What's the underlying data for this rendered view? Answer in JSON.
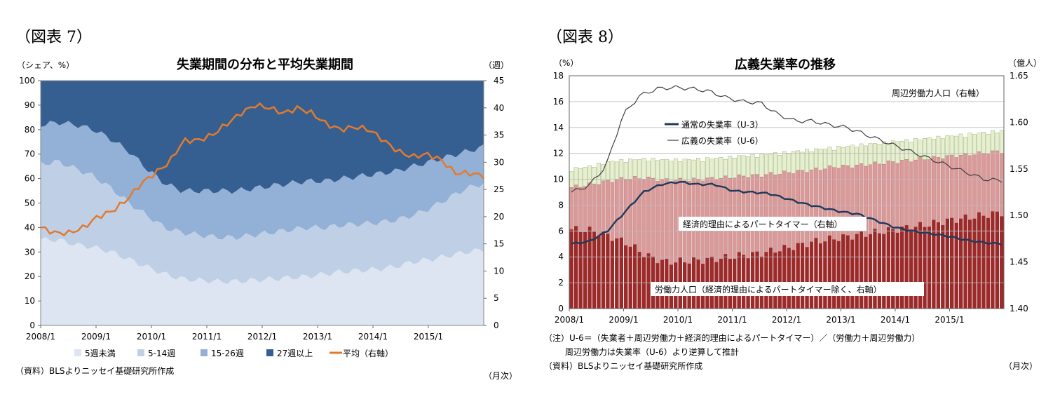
{
  "left": {
    "fig_label": "（図表 7）",
    "title": "失業期間の分布と平均失業期間",
    "left_unit": "（シェア、%）",
    "right_unit": "（週）",
    "y_left_ticks": [
      "0",
      "10",
      "20",
      "30",
      "40",
      "50",
      "60",
      "70",
      "80",
      "90",
      "100"
    ],
    "y_right_ticks": [
      "0",
      "5",
      "10",
      "15",
      "20",
      "25",
      "30",
      "35",
      "40",
      "45"
    ],
    "x_ticks": [
      "2008/1",
      "2009/1",
      "2010/1",
      "2011/1",
      "2012/1",
      "2013/1",
      "2014/1",
      "2015/1"
    ],
    "legend": [
      {
        "label": "5週未満",
        "color": "#dce5f1"
      },
      {
        "label": "5-14週",
        "color": "#bfd0e6"
      },
      {
        "label": "15-26週",
        "color": "#93b0d6"
      },
      {
        "label": "27週以上",
        "color": "#365f91"
      },
      {
        "label": "平均（右軸）",
        "color": "#e27a2e"
      }
    ],
    "source": "（資料）BLSよりニッセイ基礎研究所作成",
    "period_unit": "（月次）"
  },
  "right": {
    "fig_label": "（図表 8）",
    "title": "広義失業率の推移",
    "left_unit": "（%）",
    "right_unit": "（億人）",
    "y_left_ticks": [
      "0",
      "2",
      "4",
      "6",
      "8",
      "10",
      "12",
      "14",
      "16",
      "18"
    ],
    "y_right_ticks": [
      "1.40",
      "1.45",
      "1.50",
      "1.55",
      "1.60",
      "1.65"
    ],
    "x_ticks": [
      "2008/1",
      "2009/1",
      "2010/1",
      "2011/1",
      "2012/1",
      "2013/1",
      "2014/1",
      "2015/1"
    ],
    "labels": {
      "u3": "通常の失業率（U-3）",
      "u6": "広義の失業率（U-6）",
      "marginal": "周辺労働力人口（右軸）",
      "ptr": "経済的理由によるパートタイマー（右軸）",
      "labor": "労働力人口（経済的理由によるパートタイマー除く、右軸）"
    },
    "colors": {
      "labor": "#9b2a2a",
      "ptr": "#d99a9a",
      "marginal": "#e6efcf",
      "u3": "#1f3a5a",
      "u6": "#404040"
    },
    "note1": "（注）U-6＝（失業者＋周辺労働力＋経済的理由によるパートタイマー）／（労働力＋周辺労働力）",
    "note2": "周辺労働力は失業率（U-6）より逆算して推計",
    "source": "（資料）BLSよりニッセイ基礎研究所作成",
    "period_unit": "（月次）"
  },
  "chart_data": [
    {
      "type": "area",
      "title": "失業期間の分布と平均失業期間",
      "ylabel": "（シェア、%）",
      "y2label": "（週）",
      "ylim": [
        0,
        100
      ],
      "y2lim": [
        0,
        45
      ],
      "x_start": "2008/1",
      "x_end": "2015/12",
      "stacked_cumulative": true,
      "series": [
        {
          "name": "5週未満",
          "axis": "left",
          "values": [
            35,
            35,
            33,
            32,
            30,
            27,
            24,
            21,
            19,
            18.5,
            18,
            18,
            18.5,
            19,
            19.5,
            20,
            21,
            22,
            22.5,
            23,
            24,
            26,
            27,
            28.5,
            30,
            31
          ]
        },
        {
          "name": "5-14週",
          "axis": "left",
          "values": [
            66,
            67,
            64,
            61,
            56,
            50,
            45,
            40,
            38,
            37,
            36,
            36,
            37,
            38,
            39,
            40,
            40,
            41,
            41.5,
            42,
            43,
            45,
            48,
            52,
            56,
            58
          ]
        },
        {
          "name": "15-26週",
          "axis": "left",
          "values": [
            82,
            83,
            82,
            80,
            76,
            71,
            64,
            58,
            55,
            55,
            55,
            55,
            56,
            57,
            58,
            59,
            59,
            60,
            61,
            62,
            63,
            65,
            67,
            69,
            71,
            73
          ]
        },
        {
          "name": "27週以上",
          "axis": "left",
          "values": [
            100,
            100,
            100,
            100,
            100,
            100,
            100,
            100,
            100,
            100,
            100,
            100,
            100,
            100,
            100,
            100,
            100,
            100,
            100,
            100,
            100,
            100,
            100,
            100,
            100,
            100
          ]
        },
        {
          "name": "平均（右軸）",
          "axis": "right",
          "values": [
            18,
            17,
            17,
            18,
            20,
            21,
            23,
            26,
            28,
            30,
            34,
            34,
            35,
            37,
            39,
            40.5,
            40,
            39,
            40,
            39,
            37,
            36,
            36.5,
            36,
            34,
            32,
            31,
            31.5,
            30.5,
            28,
            28,
            27.5
          ]
        }
      ]
    },
    {
      "type": "bar",
      "title": "広義失業率の推移",
      "ylabel": "（%）",
      "y2label": "（億人）",
      "ylim": [
        0,
        18
      ],
      "y2lim": [
        1.4,
        1.65
      ],
      "x_start": "2008/1",
      "x_end": "2015/12",
      "stacked_cumulative": true,
      "series": [
        {
          "name": "労働力人口（経済的理由によるパートタイマー除く、右軸）",
          "axis": "right",
          "values": [
            1.485,
            1.484,
            1.478,
            1.47,
            1.457,
            1.45,
            1.451,
            1.452,
            1.454,
            1.457,
            1.459,
            1.463,
            1.467,
            1.472,
            1.475,
            1.478,
            1.481,
            1.484,
            1.487,
            1.49,
            1.494,
            1.497,
            1.5,
            1.503
          ]
        },
        {
          "name": "経済的理由によるパートタイマー（右軸）",
          "axis": "right",
          "values": [
            1.53,
            1.533,
            1.537,
            1.54,
            1.54,
            1.538,
            1.538,
            1.539,
            1.54,
            1.542,
            1.543,
            1.545,
            1.547,
            1.549,
            1.552,
            1.553,
            1.555,
            1.557,
            1.559,
            1.561,
            1.563,
            1.565,
            1.567,
            1.569
          ]
        },
        {
          "name": "周辺労働力人口（右軸）",
          "axis": "right",
          "values": [
            1.547,
            1.55,
            1.555,
            1.557,
            1.558,
            1.557,
            1.557,
            1.558,
            1.559,
            1.561,
            1.562,
            1.564,
            1.566,
            1.568,
            1.57,
            1.572,
            1.574,
            1.576,
            1.578,
            1.58,
            1.582,
            1.584,
            1.586,
            1.588
          ]
        },
        {
          "name": "通常の失業率（U-3）",
          "axis": "left",
          "values": [
            5.0,
            5.2,
            6.0,
            7.5,
            9.0,
            9.6,
            9.8,
            9.6,
            9.6,
            9.1,
            9.0,
            8.9,
            8.5,
            8.1,
            7.8,
            7.5,
            7.3,
            6.8,
            6.3,
            6.0,
            5.8,
            5.6,
            5.3,
            5.1,
            5.0
          ]
        },
        {
          "name": "広義の失業率（U-6）",
          "axis": "left",
          "values": [
            9.0,
            9.5,
            11.0,
            15.0,
            16.5,
            17.0,
            17.1,
            17.0,
            16.8,
            16.3,
            16.0,
            15.9,
            15.0,
            14.5,
            14.5,
            14.2,
            14.0,
            13.5,
            13.0,
            12.5,
            12.0,
            11.5,
            11.0,
            10.5,
            10.0,
            9.9
          ]
        }
      ]
    }
  ]
}
